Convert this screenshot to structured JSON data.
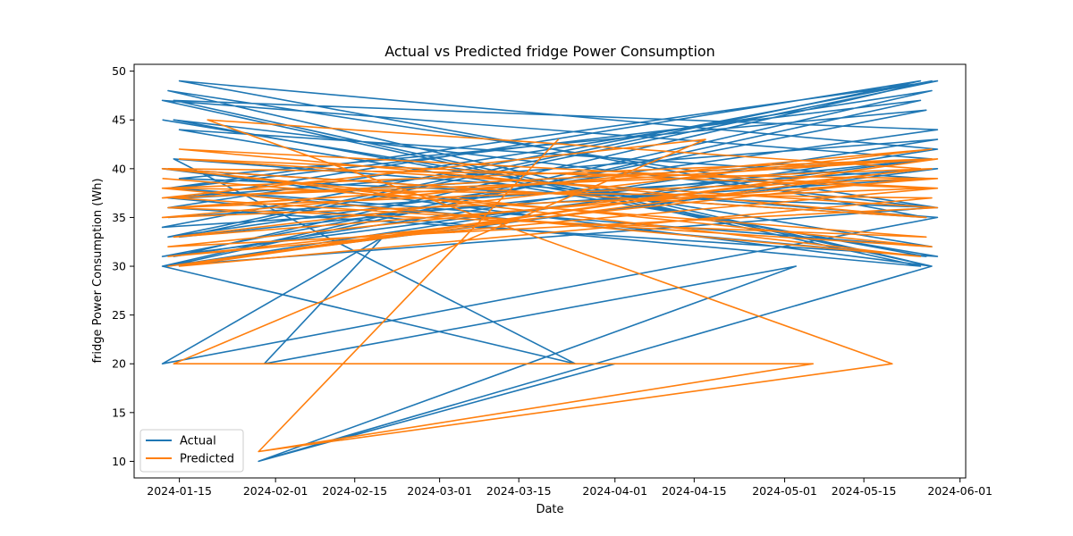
{
  "chart_data": {
    "type": "line",
    "title": "Actual vs Predicted fridge Power Consumption",
    "xlabel": "Date",
    "ylabel": "fridge Power Consumption (Wh)",
    "xlim": [
      "2024-01-07",
      "2024-06-02"
    ],
    "ylim": [
      8.3,
      50.7
    ],
    "x_ticks": [
      "2024-01-15",
      "2024-02-01",
      "2024-02-15",
      "2024-03-01",
      "2024-03-15",
      "2024-04-01",
      "2024-04-15",
      "2024-05-01",
      "2024-05-15",
      "2024-06-01"
    ],
    "y_ticks": [
      10,
      15,
      20,
      25,
      30,
      35,
      40,
      45,
      50
    ],
    "grid": false,
    "legend_position": "lower-left",
    "series": [
      {
        "name": "Actual",
        "color": "#1f77b4",
        "x": [
          "2024-01-12",
          "2024-05-27",
          "2024-01-14",
          "2024-05-25",
          "2024-01-13",
          "2024-05-28",
          "2024-01-15",
          "2024-05-26",
          "2024-01-12",
          "2024-05-27",
          "2024-01-14",
          "2024-05-28",
          "2024-01-13",
          "2024-05-25",
          "2024-01-16",
          "2024-05-27",
          "2024-01-12",
          "2024-05-26",
          "2024-01-15",
          "2024-05-28",
          "2024-01-13",
          "2024-05-27",
          "2024-01-29",
          "2024-04-01",
          "2024-01-29",
          "2024-05-03",
          "2024-01-30",
          "2024-02-20",
          "2024-01-12",
          "2024-05-28",
          "2024-01-14",
          "2024-03-25",
          "2024-01-12",
          "2024-05-27",
          "2024-01-13",
          "2024-05-28",
          "2024-01-15",
          "2024-05-26",
          "2024-01-12",
          "2024-05-27",
          "2024-01-14",
          "2024-05-28",
          "2024-01-13",
          "2024-05-25",
          "2024-01-12",
          "2024-05-27",
          "2024-01-15",
          "2024-05-28",
          "2024-01-13",
          "2024-05-26",
          "2024-01-14",
          "2024-05-27",
          "2024-01-12",
          "2024-05-28",
          "2024-01-13"
        ],
        "y": [
          45,
          32,
          38,
          47,
          30,
          42,
          49,
          35,
          40,
          30,
          47,
          44,
          33,
          49,
          37,
          41,
          31,
          46,
          39,
          36,
          48,
          30,
          10,
          20,
          10,
          30,
          20,
          33,
          20,
          35,
          41,
          20,
          30,
          48,
          36,
          31,
          44,
          39,
          34,
          49,
          31,
          43,
          37,
          30,
          47,
          41,
          33,
          49,
          38,
          31,
          45,
          36,
          30,
          40,
          35
        ]
      },
      {
        "name": "Predicted",
        "color": "#ff7f0e",
        "x": [
          "2024-01-12",
          "2024-05-27",
          "2024-01-14",
          "2024-05-25",
          "2024-01-13",
          "2024-05-28",
          "2024-01-15",
          "2024-05-26",
          "2024-01-12",
          "2024-05-27",
          "2024-01-14",
          "2024-05-28",
          "2024-01-13",
          "2024-05-25",
          "2024-01-20",
          "2024-05-20",
          "2024-01-29",
          "2024-03-22",
          "2024-01-29",
          "2024-05-06",
          "2024-01-14",
          "2024-04-17",
          "2024-01-12",
          "2024-05-27",
          "2024-01-13",
          "2024-05-28",
          "2024-01-15",
          "2024-05-26",
          "2024-01-12",
          "2024-05-27",
          "2024-01-14",
          "2024-05-28",
          "2024-01-13",
          "2024-05-25",
          "2024-01-12",
          "2024-05-27",
          "2024-01-15",
          "2024-05-28",
          "2024-01-13",
          "2024-05-26",
          "2024-01-12"
        ],
        "y": [
          38,
          41,
          36,
          39,
          31,
          38,
          42,
          35,
          40,
          32,
          37,
          41,
          30,
          40,
          45,
          20,
          11,
          43,
          11,
          20,
          20,
          43,
          37,
          40,
          32,
          36,
          41,
          38,
          35,
          42,
          33,
          39,
          40,
          31,
          38,
          37,
          30,
          41,
          36,
          33,
          39
        ]
      }
    ]
  }
}
